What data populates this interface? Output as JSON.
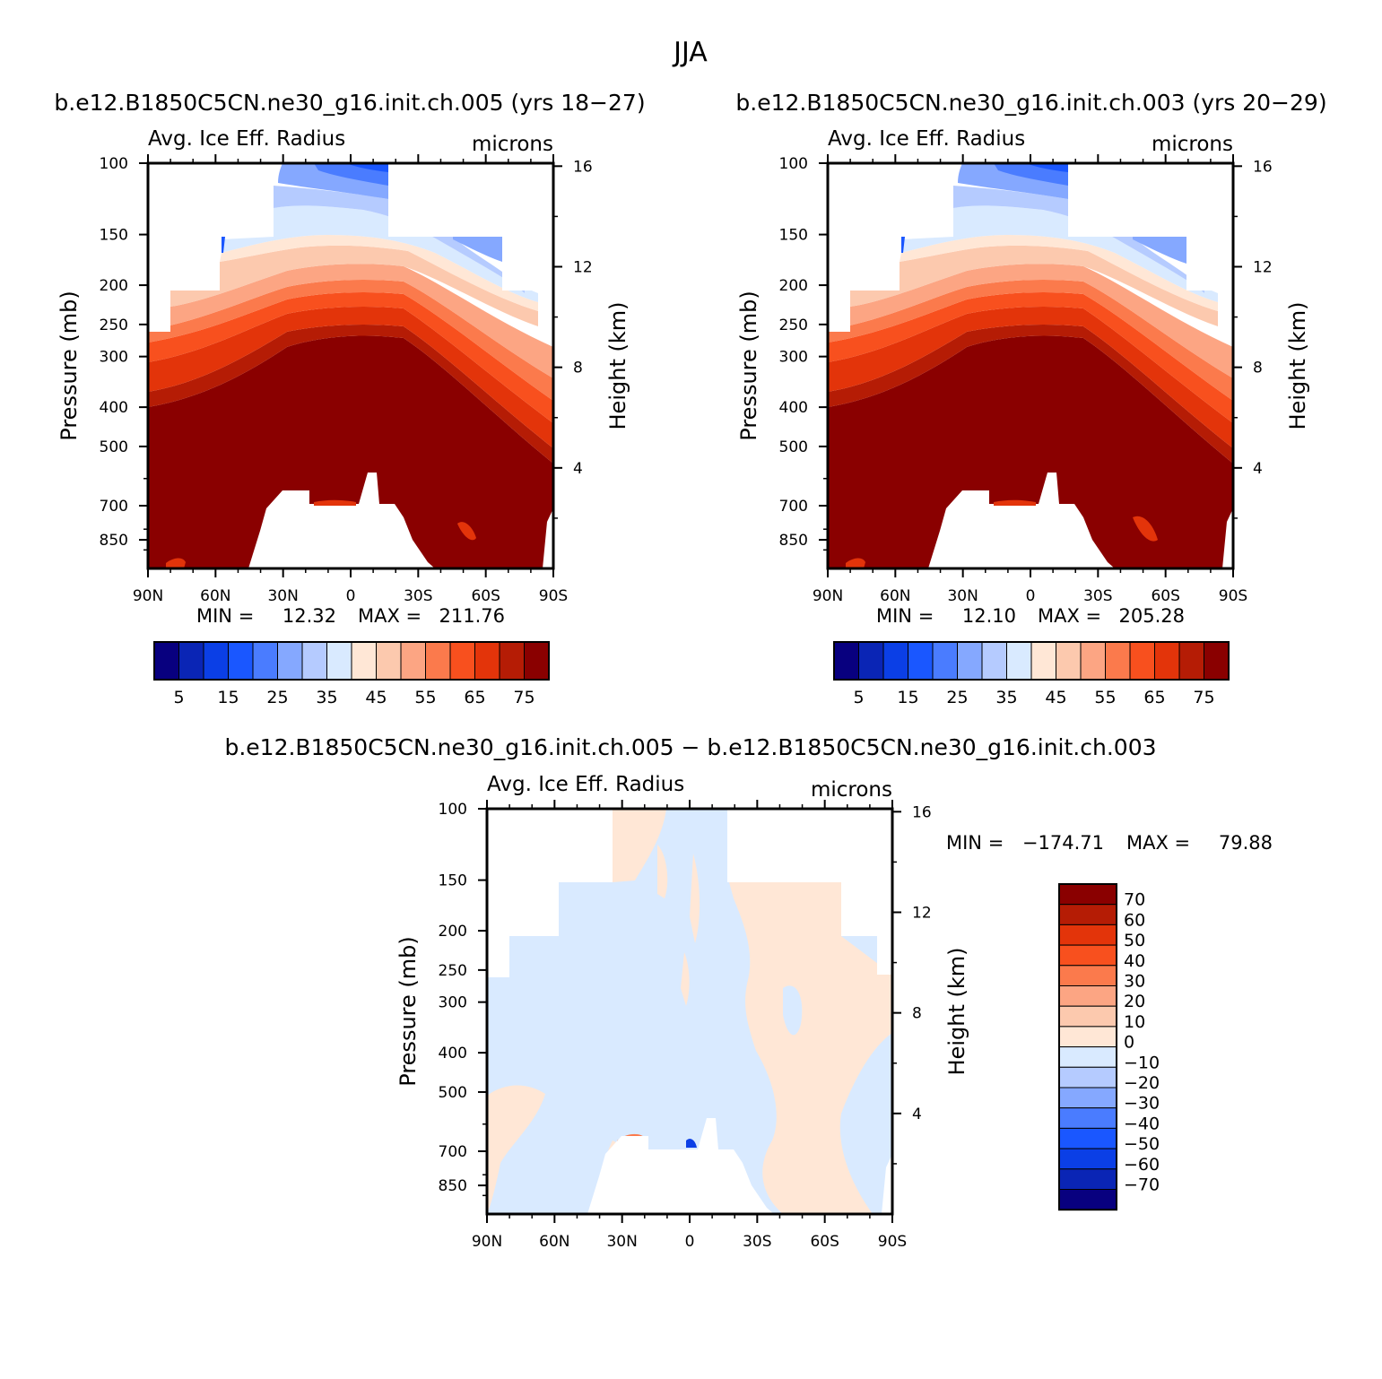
{
  "figure": {
    "title": "JJA",
    "runs": {
      "left": "b.e12.B1850C5CN.ne30_g16.init.ch.005 (yrs 18-27)",
      "right": "b.e12.B1850C5CN.ne30_g16.init.ch.003 (yrs 20-29)",
      "diff": "b.e12.B1850C5CN.ne30_g16.init.ch.005 - b.e12.B1850C5CN.ne30_g16.init.ch.003"
    }
  },
  "chart_data": [
    {
      "type": "heatmap",
      "id": "panel-005",
      "title": "Avg. Ice Eff. Radius",
      "units": "microns",
      "xlabel": "",
      "ylabel": "Pressure (mb)",
      "y2label": "Height (km)",
      "x_ticks": [
        "90N",
        "60N",
        "30N",
        "0",
        "30S",
        "60S",
        "90S"
      ],
      "y_ticks": [
        "100",
        "150",
        "200",
        "250",
        "300",
        "400",
        "500",
        "700",
        "850"
      ],
      "y2_ticks": [
        "16",
        "12",
        "8",
        "4"
      ],
      "min_label": "MIN =",
      "min_value": "12.32",
      "max_label": "MAX =",
      "max_value": "211.76",
      "colorbar": {
        "orientation": "horizontal",
        "levels": [
          5,
          10,
          15,
          20,
          25,
          30,
          35,
          40,
          45,
          50,
          55,
          60,
          65,
          70,
          75
        ],
        "labels": [
          "5",
          "15",
          "25",
          "35",
          "45",
          "55",
          "65",
          "75"
        ],
        "colors": [
          "#08007f",
          "#0a25b5",
          "#0b3fe6",
          "#1a57ff",
          "#4a7cff",
          "#85a8ff",
          "#b5cbff",
          "#d9eaff",
          "#ffe7d6",
          "#fcc9ae",
          "#fca583",
          "#fb7a4c",
          "#f8501e",
          "#e3340a",
          "#b51c05",
          "#8a0000"
        ]
      }
    },
    {
      "type": "heatmap",
      "id": "panel-003",
      "title": "Avg. Ice Eff. Radius",
      "units": "microns",
      "xlabel": "",
      "ylabel": "Pressure (mb)",
      "y2label": "Height (km)",
      "x_ticks": [
        "90N",
        "60N",
        "30N",
        "0",
        "30S",
        "60S",
        "90S"
      ],
      "y_ticks": [
        "100",
        "150",
        "200",
        "250",
        "300",
        "400",
        "500",
        "700",
        "850"
      ],
      "y2_ticks": [
        "16",
        "12",
        "8",
        "4"
      ],
      "min_label": "MIN =",
      "min_value": "12.10",
      "max_label": "MAX =",
      "max_value": "205.28",
      "colorbar": {
        "orientation": "horizontal",
        "levels": [
          5,
          10,
          15,
          20,
          25,
          30,
          35,
          40,
          45,
          50,
          55,
          60,
          65,
          70,
          75
        ],
        "labels": [
          "5",
          "15",
          "25",
          "35",
          "45",
          "55",
          "65",
          "75"
        ],
        "colors": [
          "#08007f",
          "#0a25b5",
          "#0b3fe6",
          "#1a57ff",
          "#4a7cff",
          "#85a8ff",
          "#b5cbff",
          "#d9eaff",
          "#ffe7d6",
          "#fcc9ae",
          "#fca583",
          "#fb7a4c",
          "#f8501e",
          "#e3340a",
          "#b51c05",
          "#8a0000"
        ]
      }
    },
    {
      "type": "heatmap",
      "id": "panel-diff",
      "title": "Avg. Ice Eff. Radius",
      "units": "microns",
      "xlabel": "",
      "ylabel": "Pressure (mb)",
      "y2label": "Height (km)",
      "x_ticks": [
        "90N",
        "60N",
        "30N",
        "0",
        "30S",
        "60S",
        "90S"
      ],
      "y_ticks": [
        "100",
        "150",
        "200",
        "250",
        "300",
        "400",
        "500",
        "700",
        "850"
      ],
      "y2_ticks": [
        "16",
        "12",
        "8",
        "4"
      ],
      "min_label": "MIN =",
      "min_value": "-174.71",
      "max_label": "MAX =",
      "max_value": "79.88",
      "colorbar": {
        "orientation": "vertical",
        "labels": [
          "70",
          "60",
          "50",
          "40",
          "30",
          "20",
          "10",
          "0",
          "-10",
          "-20",
          "-30",
          "-40",
          "-50",
          "-60",
          "-70"
        ],
        "colors": [
          "#8a0000",
          "#b51c05",
          "#e3340a",
          "#f8501e",
          "#fb7a4c",
          "#fca583",
          "#fcc9ae",
          "#ffe7d6",
          "#d9eaff",
          "#b5cbff",
          "#85a8ff",
          "#4a7cff",
          "#1a57ff",
          "#0b3fe6",
          "#0a25b5",
          "#08007f"
        ]
      }
    }
  ]
}
